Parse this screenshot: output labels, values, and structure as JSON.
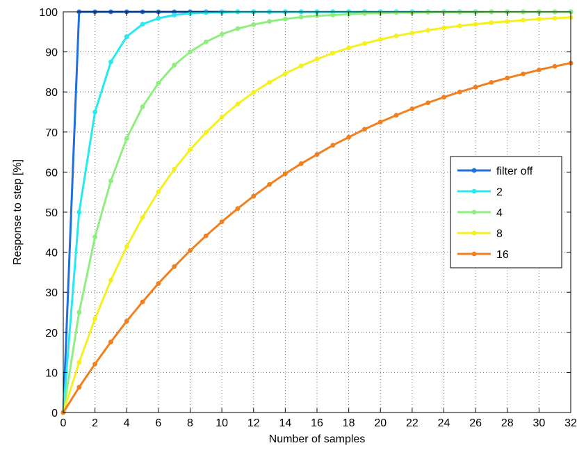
{
  "chart_data": {
    "type": "line",
    "title": "",
    "xlabel": "Number of samples",
    "ylabel": "Response to step [%]",
    "xlim": [
      0,
      32
    ],
    "ylim": [
      0,
      100
    ],
    "xticks": [
      0,
      2,
      4,
      6,
      8,
      10,
      12,
      14,
      16,
      18,
      20,
      22,
      24,
      26,
      28,
      30,
      32
    ],
    "yticks": [
      0,
      10,
      20,
      30,
      40,
      50,
      60,
      70,
      80,
      90,
      100
    ],
    "grid": true,
    "legend_position": "right",
    "x": [
      0,
      1,
      2,
      3,
      4,
      5,
      6,
      7,
      8,
      9,
      10,
      11,
      12,
      13,
      14,
      15,
      16,
      17,
      18,
      19,
      20,
      21,
      22,
      23,
      24,
      25,
      26,
      27,
      28,
      29,
      30,
      31,
      32
    ],
    "series": [
      {
        "name": "filter off",
        "color": "#1f6fe0",
        "values": [
          0,
          100,
          100,
          100,
          100,
          100,
          100,
          100,
          100,
          100,
          100,
          100,
          100,
          100,
          100,
          100,
          100,
          100,
          100,
          100,
          100,
          100,
          100,
          100,
          100,
          100,
          100,
          100,
          100,
          100,
          100,
          100,
          100
        ]
      },
      {
        "name": "2",
        "color": "#28e8f0",
        "values": [
          0,
          50,
          75,
          87.5,
          93.8,
          96.9,
          98.4,
          99.2,
          99.6,
          99.8,
          99.9,
          100,
          100,
          100,
          100,
          100,
          100,
          100,
          100,
          100,
          100,
          100,
          100,
          100,
          100,
          100,
          100,
          100,
          100,
          100,
          100,
          100,
          100
        ]
      },
      {
        "name": "4",
        "color": "#90ee80",
        "values": [
          0,
          25,
          43.8,
          57.8,
          68.4,
          76.3,
          82.2,
          86.7,
          90,
          92.5,
          94.4,
          95.8,
          96.8,
          97.6,
          98.2,
          98.7,
          99,
          99.2,
          99.4,
          99.6,
          99.7,
          99.8,
          99.8,
          99.9,
          99.9,
          99.9,
          99.9,
          100,
          100,
          100,
          100,
          100,
          100
        ]
      },
      {
        "name": "8",
        "color": "#f5f020",
        "values": [
          0,
          12.5,
          23.4,
          33,
          41.4,
          48.7,
          55.1,
          60.7,
          65.6,
          69.9,
          73.7,
          77,
          79.9,
          82.4,
          84.6,
          86.5,
          88.2,
          89.7,
          91,
          92.1,
          93.1,
          94,
          94.7,
          95.4,
          96,
          96.5,
          96.9,
          97.3,
          97.6,
          97.9,
          98.2,
          98.4,
          98.6
        ]
      },
      {
        "name": "16",
        "color": "#f08020",
        "values": [
          0,
          6.3,
          12.1,
          17.6,
          22.8,
          27.6,
          32.2,
          36.4,
          40.4,
          44.1,
          47.6,
          50.9,
          54,
          56.9,
          59.6,
          62.1,
          64.4,
          66.7,
          68.7,
          70.7,
          72.5,
          74.2,
          75.8,
          77.3,
          78.7,
          80,
          81.2,
          82.4,
          83.5,
          84.5,
          85.5,
          86.4,
          87.2
        ]
      }
    ]
  }
}
